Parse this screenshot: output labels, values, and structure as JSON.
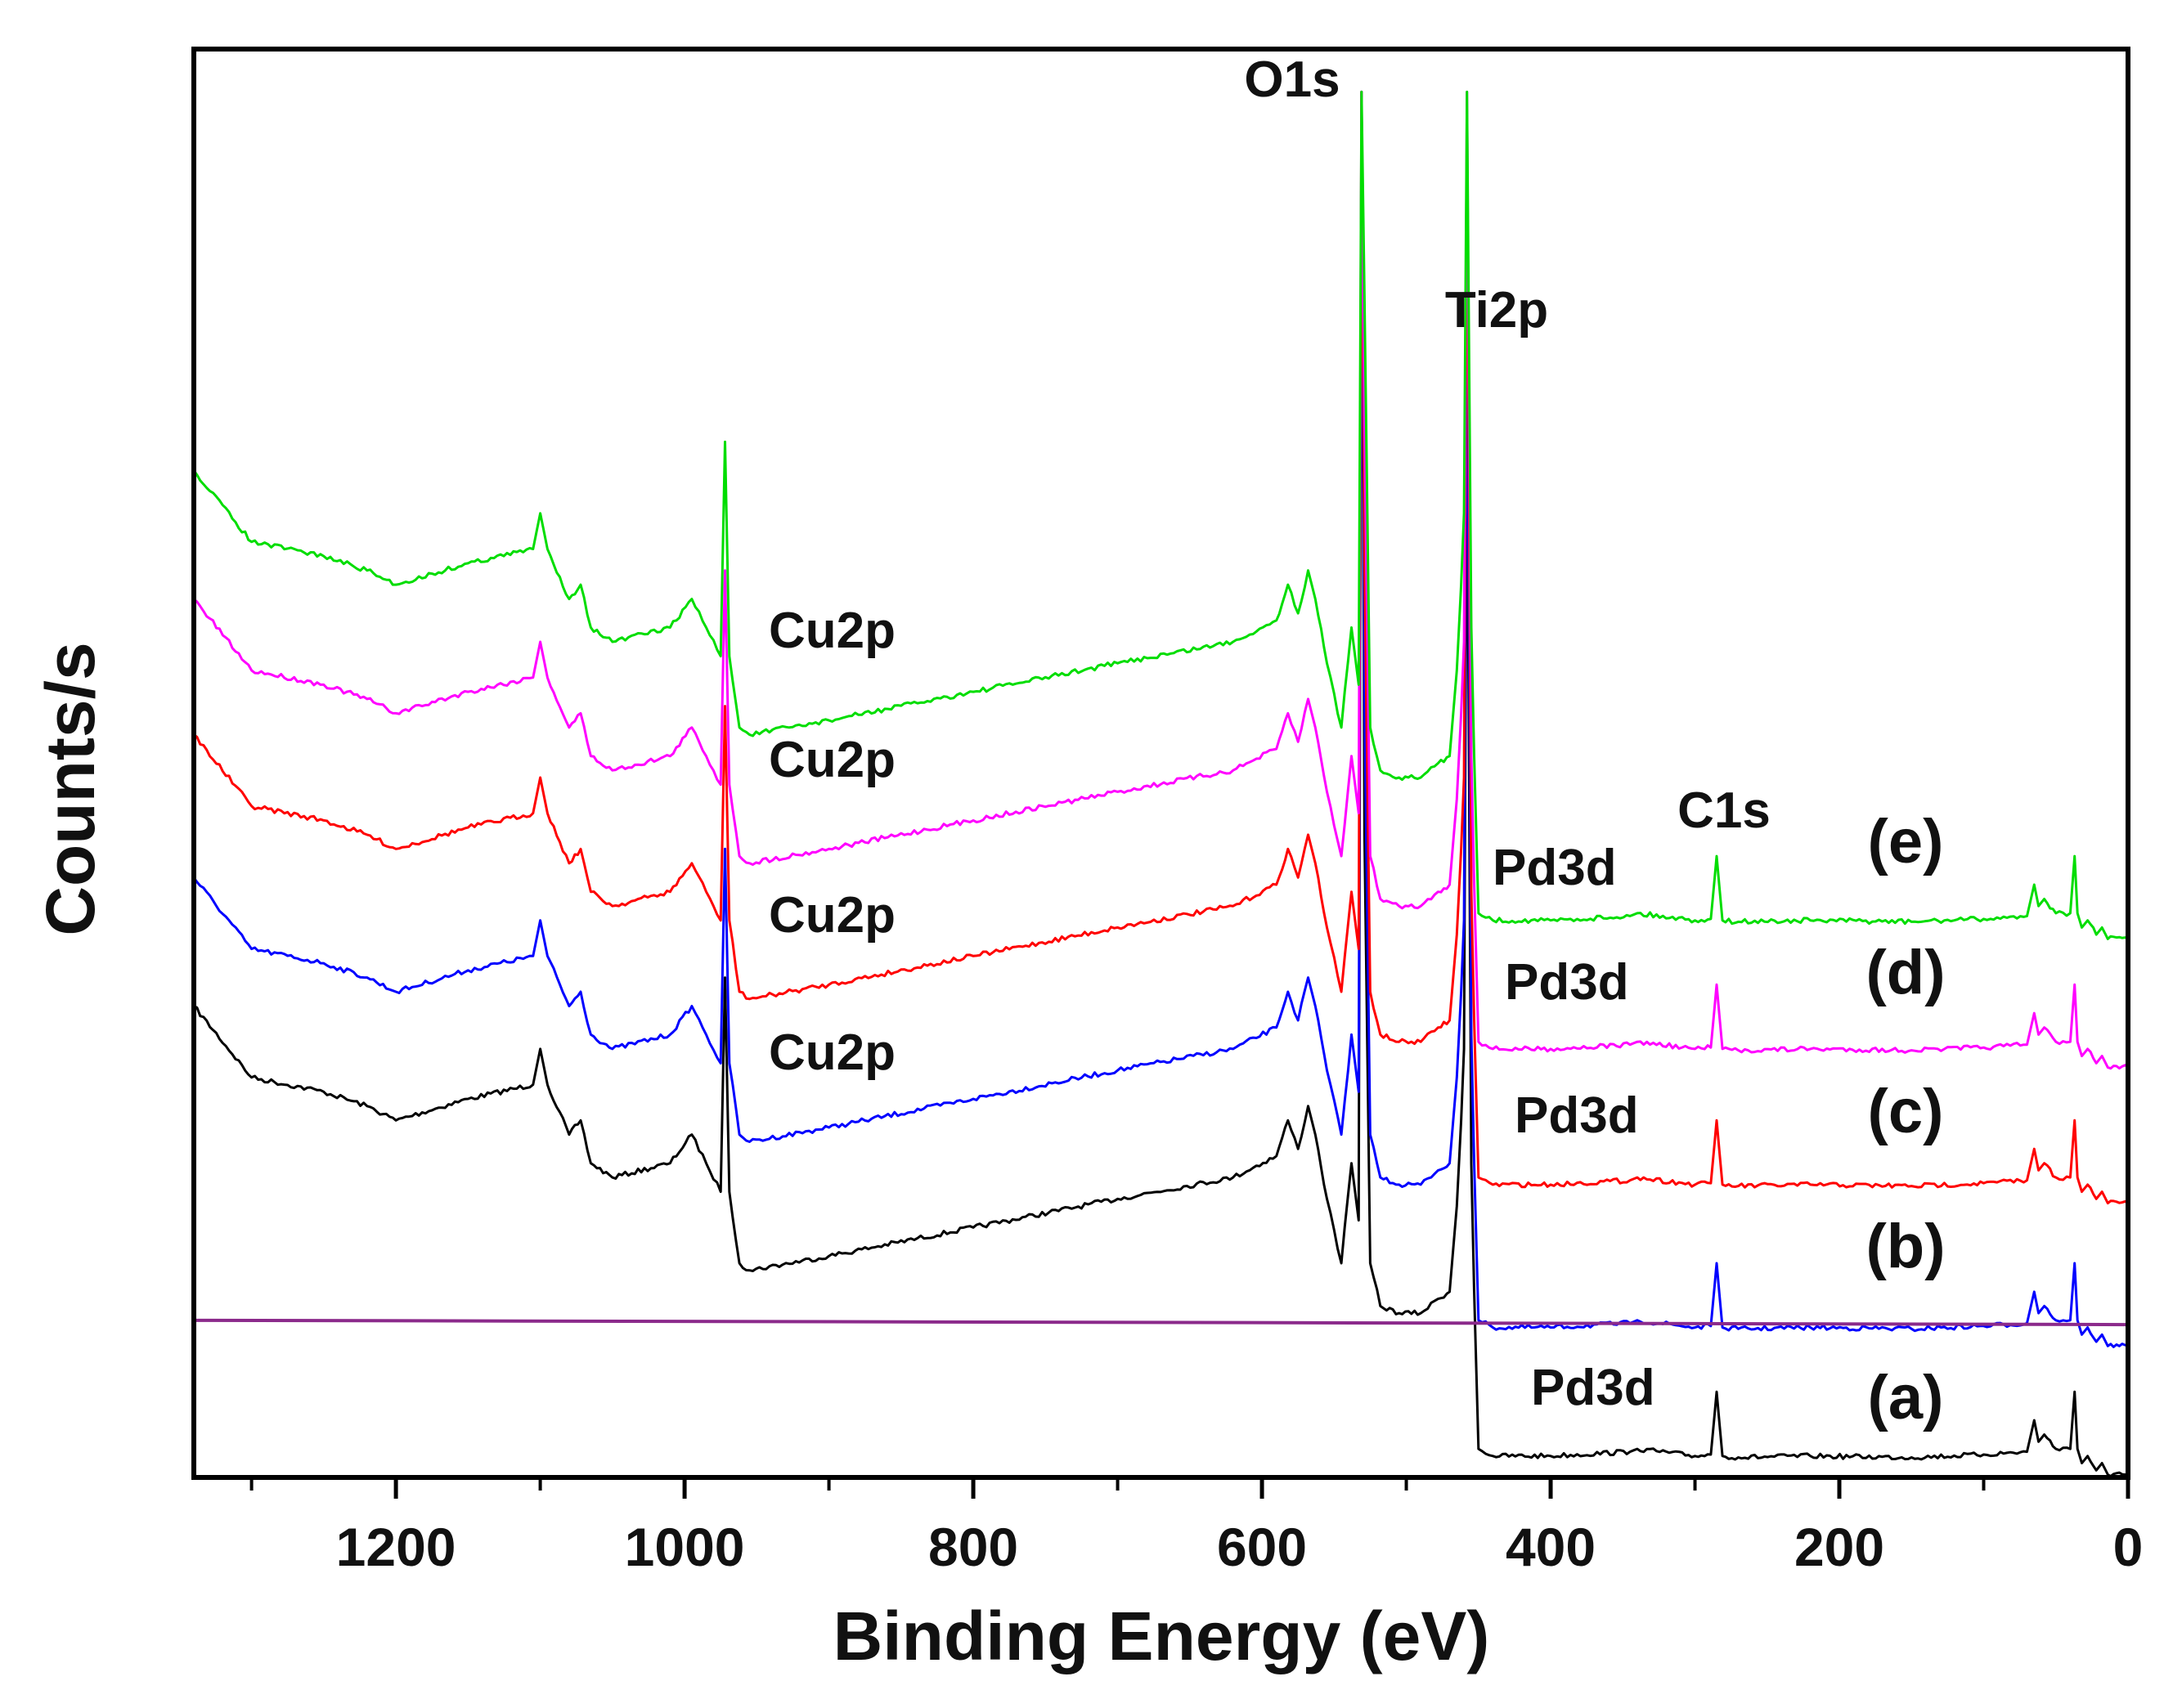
{
  "chart_data": {
    "type": "line",
    "title": "",
    "xlabel": "Binding Energy (eV)",
    "ylabel": "Counts/s",
    "xlim": [
      1340,
      0
    ],
    "ylim": [
      0,
      100
    ],
    "x_ticks": [
      1200,
      1000,
      800,
      600,
      400,
      200,
      0
    ],
    "x_minor_ticks": [
      1300,
      1100,
      900,
      700,
      500,
      300,
      100
    ],
    "grid": false,
    "legend": "none",
    "baseline": {
      "name": "baseline",
      "color": "#8b2a8b",
      "y": 11
    },
    "series": [
      {
        "name": "(a)",
        "color": "#000000",
        "offset": 0,
        "cu2p_label": "",
        "pd3d_label": "Pd3d"
      },
      {
        "name": "(b)",
        "color": "#0000ff",
        "offset": 9,
        "cu2p_label": "Cu2p",
        "pd3d_label": ""
      },
      {
        "name": "(c)",
        "color": "#ff0000",
        "offset": 19,
        "cu2p_label": "Cu2p",
        "pd3d_label": "Pd3d"
      },
      {
        "name": "(d)",
        "color": "#ff00ff",
        "offset": 28.5,
        "cu2p_label": "Cu2p",
        "pd3d_label": "Pd3d"
      },
      {
        "name": "(e)",
        "color": "#00dd00",
        "offset": 37.5,
        "cu2p_label": "Cu2p",
        "pd3d_label": "Pd3d"
      }
    ],
    "profile": {
      "x": [
        1340,
        1300,
        1250,
        1220,
        1200,
        1150,
        1105,
        1100,
        1095,
        1080,
        1072,
        1065,
        1050,
        1010,
        995,
        985,
        975,
        972,
        969,
        962,
        955,
        900,
        800,
        700,
        620,
        590,
        582,
        575,
        568,
        563,
        555,
        545,
        538,
        533,
        531,
        529,
        525,
        518,
        505,
        490,
        478,
        470,
        465,
        462,
        460,
        458,
        455,
        453,
        450,
        440,
        400,
        345,
        340,
        300,
        289,
        285,
        281,
        270,
        220,
        150,
        100,
        70,
        65,
        62,
        58,
        50,
        40,
        37,
        35,
        32,
        28,
        22,
        18,
        14,
        8,
        0
      ],
      "y": [
        33,
        28,
        27,
        26,
        25,
        26.5,
        27.5,
        30,
        27.5,
        24,
        25,
        22,
        21,
        22,
        24,
        22,
        20,
        35,
        20,
        15,
        14.5,
        15.5,
        17.5,
        19.5,
        21,
        22.5,
        25,
        23,
        26,
        24,
        19.5,
        15,
        22,
        18,
        75,
        45,
        15,
        12,
        11.5,
        11.5,
        12.5,
        13,
        19,
        25,
        30,
        58,
        22,
        13,
        2,
        1.5,
        1.5,
        1.8,
        2,
        1.5,
        1.6,
        6,
        1.5,
        1.4,
        1.5,
        1.4,
        1.6,
        1.8,
        4,
        2.5,
        3,
        2,
        2,
        6,
        2,
        1,
        1.5,
        0.5,
        1,
        0.2,
        0.3,
        0.2
      ],
      "scale": [
        1.0,
        1.0,
        1.0,
        1.0,
        1.0,
        1.0,
        1.0,
        1.0,
        1.0,
        1.0,
        1.0,
        1.0,
        1.0,
        1.0,
        1.0,
        1.0,
        1.0,
        1.0,
        1.0,
        1.0,
        1.0,
        1.0,
        1.0,
        1.0,
        1.0,
        1.0,
        1.0,
        1.0,
        1.0,
        1.0,
        1.0,
        1.0,
        1.0,
        1.0,
        1.35,
        1.0,
        1.0,
        1.0,
        1.0,
        1.0,
        1.0,
        1.0,
        1.0,
        1.0,
        1.0,
        1.3,
        1.0,
        1.0,
        1.0,
        1.0,
        1.0,
        1.0,
        1.0,
        1.0,
        1.0,
        1.0,
        1.0,
        1.0,
        1.0,
        1.0,
        1.0,
        1.0,
        1.0,
        1.0,
        1.0,
        1.0,
        1.0,
        1.0,
        1.0,
        1.0,
        1.0,
        1.0,
        1.0,
        1.0,
        1.0,
        1.0
      ]
    },
    "annotations": {
      "o1s": "O1s",
      "ti2p": "Ti2p",
      "c1s": "C1s"
    }
  }
}
